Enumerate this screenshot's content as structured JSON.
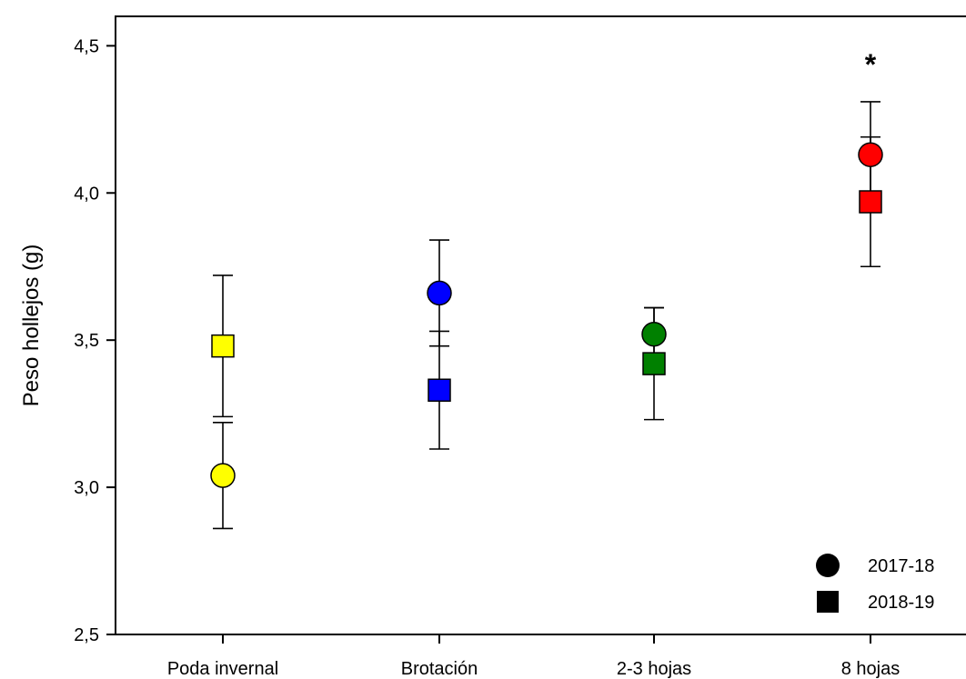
{
  "chart_data": {
    "type": "scatter",
    "title": "",
    "xlabel": "",
    "ylabel": "Peso hollejos (g)",
    "ylim": [
      2.5,
      4.6
    ],
    "yticks": [
      2.5,
      3.0,
      3.5,
      4.0,
      4.5
    ],
    "ytick_labels": [
      "2,5",
      "3,0",
      "3,5",
      "4,0",
      "4,5"
    ],
    "categories": [
      "Poda invernal",
      "Brotación",
      "2-3 hojas",
      "8 hojas"
    ],
    "category_colors": [
      "#ffff00",
      "#0000ff",
      "#008000",
      "#ff0000"
    ],
    "grid": false,
    "legend_position": "bottom-right",
    "series": [
      {
        "name": "2017-18",
        "marker": "circle",
        "values": [
          3.04,
          3.66,
          3.52,
          4.13
        ],
        "error": [
          0.18,
          0.18,
          0.09,
          0.18
        ]
      },
      {
        "name": "2018-19",
        "marker": "square",
        "values": [
          3.48,
          3.33,
          3.42,
          3.97
        ],
        "error": [
          0.24,
          0.2,
          0.19,
          0.22
        ]
      }
    ],
    "annotations": [
      {
        "text": "*",
        "category": "8 hojas",
        "y": 4.47
      }
    ]
  }
}
